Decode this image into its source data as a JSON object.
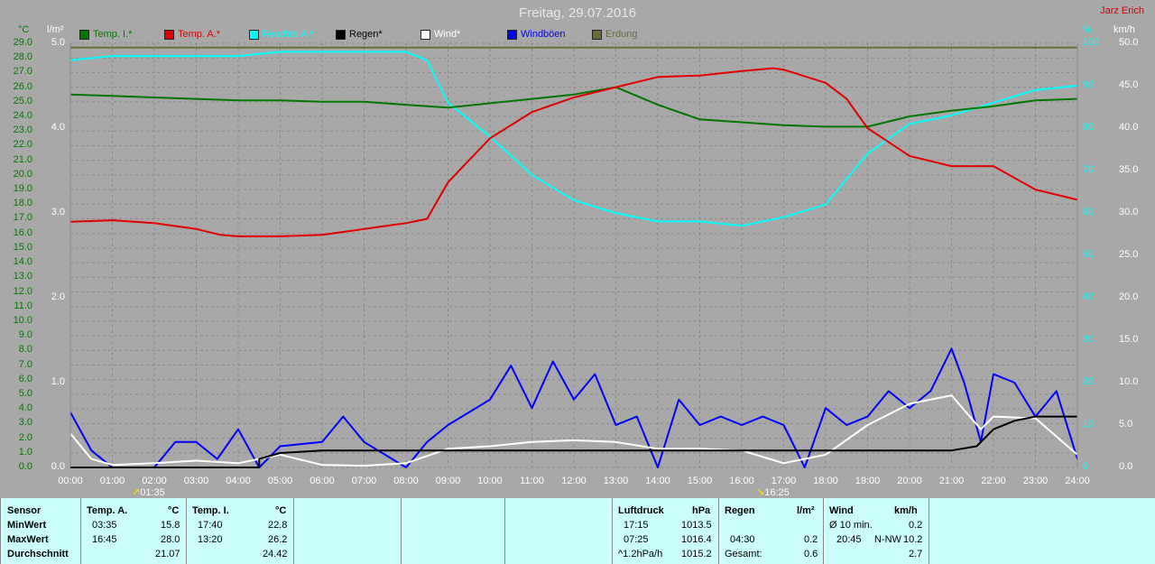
{
  "header": {
    "title": "Freitag, 29.07.2016",
    "author": "Jarz Erich"
  },
  "units": {
    "temp": "°C",
    "rain": "l/m²",
    "hum": "%",
    "wind": "km/h"
  },
  "legend": [
    {
      "label": "Temp. I.*",
      "color": "#007800"
    },
    {
      "label": "Temp. A.*",
      "color": "#e00000"
    },
    {
      "label": "Feuchte A.*",
      "color": "#00ffff"
    },
    {
      "label": "Regen*",
      "color": "#000000"
    },
    {
      "label": "Wind*",
      "color": "#ffffff"
    },
    {
      "label": "Windböen",
      "color": "#0000ff"
    },
    {
      "label": "Erdung",
      "color": "#6b6b3a"
    }
  ],
  "sun": {
    "rise": "01:35",
    "set": "16:25"
  },
  "table": {
    "sensor": {
      "header": "Sensor",
      "rows": [
        "MinWert",
        "MaxWert",
        "Durchschnitt"
      ]
    },
    "temp_a": {
      "header": "Temp. A.",
      "unit": "°C",
      "min_time": "03:35",
      "min": "15.8",
      "max_time": "16:45",
      "max": "28.0",
      "avg": "21.07"
    },
    "temp_i": {
      "header": "Temp. I.",
      "unit": "°C",
      "min_time": "17:40",
      "min": "22.8",
      "max_time": "13:20",
      "max": "26.2",
      "avg": "24.42"
    },
    "pressure": {
      "header": "Luftdruck",
      "unit": "hPa",
      "min_time": "17:15",
      "min": "1013.5",
      "max_time": "07:25",
      "max": "1016.4",
      "trend": "^1.2hPa/h",
      "avg": "1015.2"
    },
    "rain": {
      "header": "Regen",
      "unit": "l/m²",
      "time": "04:30",
      "val": "0.2",
      "total_label": "Gesamt:",
      "total": "0.6"
    },
    "wind": {
      "header": "Wind",
      "unit": "km/h",
      "avg_label": "Ø 10 min.",
      "avg": "0.2",
      "max_time": "20:45",
      "max_dir": "N-NW",
      "max": "10.2",
      "mean": "2.7"
    }
  },
  "chart_data": {
    "type": "line",
    "title": "Freitag, 29.07.2016",
    "x_range": [
      "00:00",
      "24:00"
    ],
    "x_ticks": [
      "00:00",
      "01:00",
      "02:00",
      "03:00",
      "04:00",
      "05:00",
      "06:00",
      "07:00",
      "08:00",
      "09:00",
      "10:00",
      "11:00",
      "12:00",
      "13:00",
      "14:00",
      "15:00",
      "16:00",
      "17:00",
      "18:00",
      "19:00",
      "20:00",
      "21:00",
      "22:00",
      "23:00",
      "24:00"
    ],
    "axes": {
      "temp": {
        "label": "°C",
        "ylim": [
          0,
          29
        ],
        "ticks": [
          "0.0",
          "1.0",
          "2.0",
          "3.0",
          "4.0",
          "5.0",
          "6.0",
          "7.0",
          "8.0",
          "9.0",
          "10.0",
          "11.0",
          "12.0",
          "13.0",
          "14.0",
          "15.0",
          "16.0",
          "17.0",
          "18.0",
          "19.0",
          "20.0",
          "21.0",
          "22.0",
          "23.0",
          "24.0",
          "25.0",
          "26.0",
          "27.0",
          "28.0",
          "29.0"
        ]
      },
      "rain": {
        "label": "l/m²",
        "ylim": [
          0,
          5
        ],
        "ticks": [
          "0.0",
          "1.0",
          "2.0",
          "3.0",
          "4.0",
          "5.0"
        ]
      },
      "hum": {
        "label": "%",
        "ylim": [
          0,
          100
        ],
        "ticks": [
          "0",
          "10",
          "20",
          "30",
          "40",
          "50",
          "60",
          "70",
          "80",
          "90",
          "100"
        ]
      },
      "wind": {
        "label": "km/h",
        "ylim": [
          0,
          50
        ],
        "ticks": [
          "0.0",
          "5.0",
          "10.0",
          "15.0",
          "20.0",
          "25.0",
          "30.0",
          "35.0",
          "40.0",
          "45.0",
          "50.0"
        ]
      }
    },
    "grid": true,
    "series": [
      {
        "name": "Temp. I.*",
        "axis": "temp",
        "color": "#007800",
        "x": [
          0,
          1,
          2,
          3,
          4,
          5,
          6,
          7,
          8,
          9,
          10,
          11,
          12,
          13,
          14,
          15,
          16,
          17,
          18,
          19,
          20,
          21,
          22,
          23,
          24
        ],
        "y": [
          25.5,
          25.4,
          25.3,
          25.2,
          25.1,
          25.1,
          25.0,
          25.0,
          24.8,
          24.6,
          24.9,
          25.2,
          25.5,
          26.0,
          24.8,
          23.8,
          23.6,
          23.4,
          23.3,
          23.3,
          24.0,
          24.4,
          24.7,
          25.1,
          25.2
        ]
      },
      {
        "name": "Temp. A.*",
        "axis": "temp",
        "color": "#e00000",
        "x": [
          0,
          1,
          2,
          3,
          3.58,
          4,
          5,
          6,
          7,
          8,
          8.5,
          9,
          10,
          11,
          12,
          13,
          14,
          15,
          16,
          16.75,
          17,
          18,
          18.5,
          19,
          20,
          21,
          22,
          23,
          24
        ],
        "y": [
          16.8,
          16.9,
          16.7,
          16.3,
          15.9,
          15.8,
          15.8,
          15.9,
          16.3,
          16.7,
          17.0,
          19.5,
          22.5,
          24.3,
          25.3,
          26.0,
          26.7,
          26.8,
          27.1,
          27.3,
          27.2,
          26.3,
          25.2,
          23.2,
          21.3,
          20.6,
          20.6,
          19.0,
          18.3
        ]
      },
      {
        "name": "Feuchte A.*",
        "axis": "hum",
        "color": "#00ffff",
        "x": [
          0,
          1,
          2,
          3,
          4,
          5,
          6,
          7,
          8,
          8.5,
          9,
          10,
          11,
          12,
          13,
          14,
          15,
          16,
          17,
          18,
          19,
          20,
          21,
          22,
          23,
          24
        ],
        "y": [
          96,
          97,
          97,
          97,
          97,
          98,
          98,
          98,
          98,
          96,
          86,
          78,
          69,
          63,
          60,
          58,
          58,
          57,
          59,
          62,
          74,
          81,
          83,
          86,
          89,
          90
        ]
      },
      {
        "name": "Regen*",
        "axis": "rain",
        "color": "#000000",
        "x": [
          0,
          4.5,
          4.5,
          5,
          6,
          7,
          8,
          9,
          10,
          11,
          12,
          13,
          14,
          15,
          16,
          17,
          18,
          19,
          20,
          21,
          21.6,
          22,
          22.5,
          23,
          24
        ],
        "y": [
          0,
          0,
          0.1,
          0.17,
          0.2,
          0.2,
          0.2,
          0.2,
          0.2,
          0.2,
          0.2,
          0.2,
          0.2,
          0.2,
          0.2,
          0.2,
          0.2,
          0.2,
          0.2,
          0.2,
          0.25,
          0.45,
          0.55,
          0.6,
          0.6
        ]
      },
      {
        "name": "Wind*",
        "axis": "wind",
        "color": "#ffffff",
        "x": [
          0,
          0.5,
          1,
          2,
          3,
          4,
          5,
          6,
          7,
          8,
          9,
          10,
          11,
          12,
          13,
          14,
          15,
          16,
          17,
          18,
          19,
          20,
          21,
          21.7,
          22,
          23,
          24
        ],
        "y": [
          4,
          1,
          0.3,
          0.5,
          0.8,
          0.5,
          1.5,
          0.3,
          0.2,
          0.5,
          2.2,
          2.5,
          3.0,
          3.2,
          3.0,
          2.2,
          2.2,
          2.0,
          0.5,
          1.5,
          5.0,
          7.5,
          8.5,
          4.5,
          6.0,
          5.8,
          1.5
        ]
      },
      {
        "name": "Windböen",
        "axis": "wind",
        "color": "#0000ff",
        "x": [
          0,
          0.5,
          1,
          2,
          2.5,
          3,
          3.5,
          4,
          4.5,
          5,
          6,
          6.5,
          7,
          8,
          8.5,
          9,
          10,
          10.5,
          11,
          11.5,
          12,
          12.5,
          13,
          13.5,
          14,
          14.5,
          15,
          15.5,
          16,
          16.5,
          17,
          17.5,
          18,
          18.5,
          19,
          19.5,
          20,
          20.5,
          21,
          21.3,
          21.7,
          22,
          22.5,
          23,
          23.5,
          24
        ],
        "y": [
          6.5,
          2,
          0,
          0,
          3,
          3,
          1,
          4.5,
          0,
          2.5,
          3,
          6,
          3,
          0,
          3,
          5,
          8,
          12,
          7,
          12.5,
          8,
          11,
          5,
          6,
          0,
          8,
          5,
          6,
          5,
          6,
          5,
          0,
          7,
          5,
          6,
          9,
          7,
          9,
          14,
          10,
          3,
          11,
          10,
          6,
          9,
          1
        ]
      },
      {
        "name": "Erdung",
        "axis": "hum",
        "color": "#6b6b3a",
        "x": [
          0,
          24
        ],
        "y": [
          99,
          99
        ]
      }
    ]
  }
}
